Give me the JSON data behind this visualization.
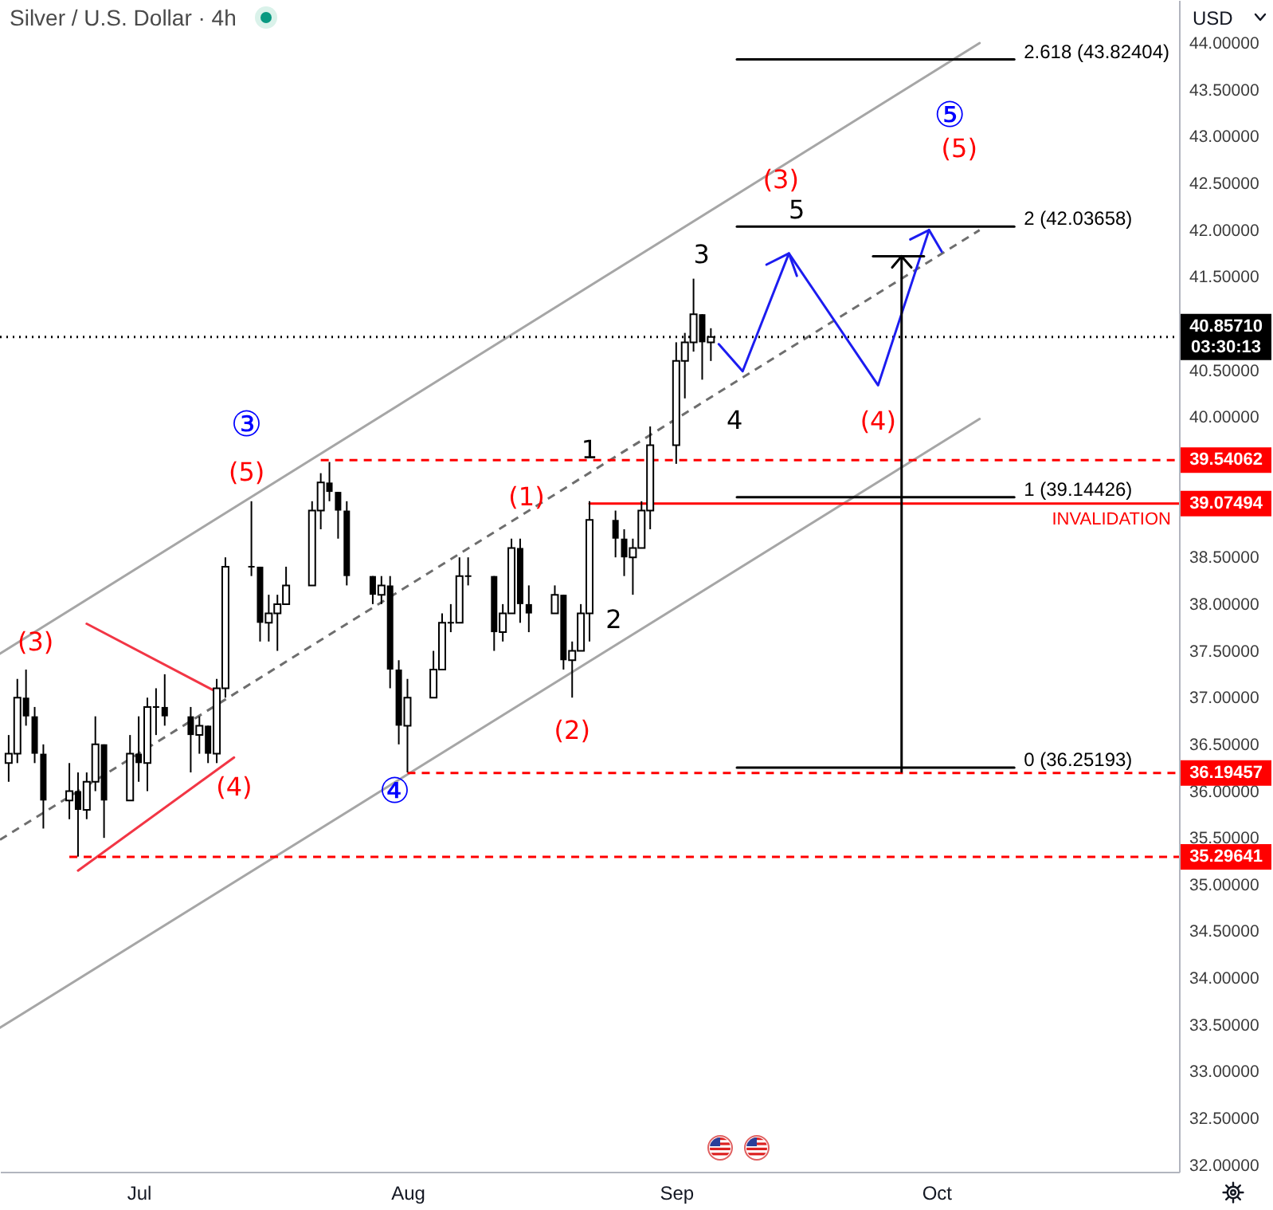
{
  "chart_data": {
    "type": "candlestick",
    "title": "Silver / U.S. Dollar · 4h",
    "ylabel": "USD",
    "x": [
      "--06-16",
      "--06-17",
      "--06-18",
      "--06-19",
      "--06-20",
      "--06-23",
      "--06-24",
      "--06-25",
      "--06-26",
      "--06-27",
      "--06-30",
      "--07-01",
      "--07-02",
      "--07-03",
      "--07-04",
      "--07-07",
      "--07-08",
      "--07-09",
      "--07-10",
      "--07-11",
      "--07-14",
      "--07-15",
      "--07-16",
      "--07-17",
      "--07-18",
      "--07-21",
      "--07-22",
      "--07-23",
      "--07-24",
      "--07-25",
      "--07-28",
      "--07-29",
      "--07-30",
      "--07-31",
      "--08-01",
      "--08-04",
      "--08-05",
      "--08-06",
      "--08-07",
      "--08-08",
      "--08-11",
      "--08-12",
      "--08-13",
      "--08-14",
      "--08-15",
      "--08-18",
      "--08-19",
      "--08-20",
      "--08-21",
      "--08-22",
      "--08-25",
      "--08-26",
      "--08-27",
      "--08-28",
      "--08-29",
      "--09-01",
      "--09-02",
      "--09-03",
      "--09-04",
      "--09-05"
    ],
    "ohlc": [
      [
        36.3,
        36.6,
        36.1,
        36.4
      ],
      [
        36.4,
        37.2,
        36.3,
        37.0
      ],
      [
        37.0,
        37.3,
        36.7,
        36.8
      ],
      [
        36.8,
        36.9,
        36.3,
        36.4
      ],
      [
        36.4,
        36.5,
        35.6,
        35.9
      ],
      [
        35.9,
        36.3,
        35.7,
        36.0
      ],
      [
        36.0,
        36.2,
        35.3,
        35.8
      ],
      [
        35.8,
        36.2,
        35.7,
        36.1
      ],
      [
        36.1,
        36.8,
        36.0,
        36.5
      ],
      [
        36.5,
        36.5,
        35.5,
        35.9
      ],
      [
        35.9,
        36.6,
        35.9,
        36.4
      ],
      [
        36.4,
        36.8,
        36.1,
        36.3
      ],
      [
        36.3,
        37.0,
        36.0,
        36.9
      ],
      [
        36.9,
        37.1,
        36.6,
        36.9
      ],
      [
        36.9,
        37.25,
        36.7,
        36.8
      ],
      [
        36.8,
        36.9,
        36.2,
        36.6
      ],
      [
        36.6,
        36.8,
        36.4,
        36.7
      ],
      [
        36.7,
        36.7,
        36.3,
        36.4
      ],
      [
        36.4,
        37.2,
        36.3,
        37.1
      ],
      [
        37.1,
        38.5,
        37.0,
        38.4
      ],
      [
        38.4,
        39.1,
        38.3,
        38.4
      ],
      [
        38.4,
        38.4,
        37.6,
        37.8
      ],
      [
        37.8,
        38.1,
        37.6,
        37.9
      ],
      [
        37.9,
        38.1,
        37.5,
        38.0
      ],
      [
        38.0,
        38.4,
        38.0,
        38.2
      ],
      [
        38.2,
        39.1,
        38.2,
        39.0
      ],
      [
        39.0,
        39.4,
        38.8,
        39.3
      ],
      [
        39.3,
        39.52,
        39.1,
        39.2
      ],
      [
        39.2,
        39.2,
        38.7,
        39.0
      ],
      [
        39.0,
        39.1,
        38.2,
        38.3
      ],
      [
        38.3,
        38.3,
        38.0,
        38.1
      ],
      [
        38.1,
        38.3,
        38.0,
        38.2
      ],
      [
        38.2,
        38.3,
        37.1,
        37.3
      ],
      [
        37.3,
        37.4,
        36.5,
        36.7
      ],
      [
        36.7,
        37.2,
        36.2,
        37.0
      ],
      [
        37.0,
        37.5,
        37.0,
        37.3
      ],
      [
        37.3,
        37.9,
        37.3,
        37.8
      ],
      [
        37.8,
        38.0,
        37.7,
        37.8
      ],
      [
        37.8,
        38.5,
        37.8,
        38.3
      ],
      [
        38.3,
        38.5,
        38.2,
        38.3
      ],
      [
        38.3,
        38.3,
        37.5,
        37.7
      ],
      [
        37.7,
        38.0,
        37.6,
        37.9
      ],
      [
        37.9,
        38.7,
        37.9,
        38.6
      ],
      [
        38.6,
        38.7,
        37.8,
        38.0
      ],
      [
        38.0,
        38.2,
        37.7,
        37.9
      ],
      [
        37.9,
        38.2,
        37.9,
        38.1
      ],
      [
        38.1,
        38.1,
        37.3,
        37.4
      ],
      [
        37.4,
        37.6,
        37.0,
        37.5
      ],
      [
        37.5,
        38.0,
        37.5,
        37.9
      ],
      [
        37.9,
        39.1,
        37.6,
        38.9
      ],
      [
        38.9,
        39.0,
        38.5,
        38.7
      ],
      [
        38.7,
        38.8,
        38.3,
        38.5
      ],
      [
        38.5,
        38.7,
        38.1,
        38.6
      ],
      [
        38.6,
        39.1,
        38.6,
        39.0
      ],
      [
        39.0,
        39.9,
        38.8,
        39.7
      ],
      [
        39.7,
        40.8,
        39.5,
        40.6
      ],
      [
        40.6,
        40.9,
        40.2,
        40.8
      ],
      [
        40.8,
        41.48,
        40.7,
        41.1
      ],
      [
        41.1,
        41.1,
        40.4,
        40.8
      ],
      [
        40.8,
        40.95,
        40.6,
        40.8571
      ]
    ],
    "series": [
      {
        "type": "line",
        "color": "#a6a6a6",
        "x": [
          "--06-15",
          "--10-06"
        ],
        "values": [
          37.47,
          44.0
        ]
      },
      {
        "type": "line",
        "color": "#6e6e6e",
        "line_style": "dashed",
        "x": [
          "--06-15",
          "--10-06"
        ],
        "values": [
          35.48,
          42.0
        ]
      },
      {
        "type": "line",
        "color": "#a6a6a6",
        "x": [
          "--06-15",
          "--10-06"
        ],
        "values": [
          33.47,
          39.98
        ]
      },
      {
        "type": "line",
        "color": "#f23645",
        "x": [
          "--06-25",
          "--07-10"
        ],
        "values": [
          37.79,
          37.06
        ]
      },
      {
        "type": "line",
        "color": "#f23645",
        "x": [
          "--06-24",
          "--07-12"
        ],
        "values": [
          35.15,
          36.36
        ]
      },
      {
        "type": "line",
        "color": "#ff0000",
        "line_style": "dashed",
        "x": [
          "--07-22",
          "--10-29"
        ],
        "values": [
          39.54062,
          39.54062
        ]
      },
      {
        "type": "line",
        "color": "#ff0000",
        "line_style": "dashed",
        "x": [
          "--08-01",
          "--10-29"
        ],
        "values": [
          36.19457,
          36.19457
        ]
      },
      {
        "type": "line",
        "color": "#ff0000",
        "line_style": "dashed",
        "x": [
          "--06-23",
          "--10-29"
        ],
        "values": [
          35.29641,
          35.29641
        ]
      },
      {
        "type": "line",
        "name": "INVALIDATION",
        "color": "#ff0000",
        "x": [
          "--08-22",
          "--10-29"
        ],
        "values": [
          39.07494,
          39.07494
        ]
      },
      {
        "type": "line",
        "color": "#000000",
        "line_style": "dotted",
        "x": [
          "--06-15",
          "--10-29"
        ],
        "values": [
          40.8571,
          40.8571
        ]
      },
      {
        "type": "line",
        "name": "2.618 (43.82404)",
        "color": "#000000",
        "x": [
          "--09-08",
          "--10-10"
        ],
        "values": [
          43.82404,
          43.82404
        ]
      },
      {
        "type": "line",
        "name": "2 (42.03658)",
        "color": "#000000",
        "x": [
          "--09-08",
          "--10-10"
        ],
        "values": [
          42.03658,
          42.03658
        ]
      },
      {
        "type": "line",
        "name": "1 (39.14426)",
        "color": "#000000",
        "x": [
          "--09-08",
          "--10-10"
        ],
        "values": [
          39.14426,
          39.14426
        ]
      },
      {
        "type": "line",
        "name": "0 (36.25193)",
        "color": "#000000",
        "x": [
          "--09-08",
          "--10-10"
        ],
        "values": [
          36.25193,
          36.25193
        ]
      },
      {
        "type": "line",
        "color": "#1c1cf0",
        "x": [
          "--09-05T22:00",
          "--09-08T16:00",
          "--09-14T00:00",
          "--09-24T07:00",
          "--09-30T04:00"
        ],
        "values": [
          40.78,
          40.49,
          41.75,
          40.34,
          42.0
        ]
      },
      {
        "type": "line",
        "color": "#1c1cf0",
        "x": [
          "--09-11T10:00",
          "--09-14T00:00",
          "--09-14T22:00"
        ],
        "values": [
          41.63,
          41.75,
          41.51
        ]
      },
      {
        "type": "line",
        "color": "#1c1cf0",
        "x": [
          "--09-28T00:00",
          "--09-30T04:00",
          "--10-01T15:00"
        ],
        "values": [
          41.9,
          42.0,
          41.77
        ]
      },
      {
        "type": "line",
        "color": "#000000",
        "x": [
          "--09-27",
          "--09-27"
        ],
        "values": [
          36.21,
          41.72
        ]
      },
      {
        "type": "line",
        "color": "#000000",
        "x": [
          "--09-23T17:00",
          "--09-29T14:00"
        ],
        "values": [
          41.72,
          41.72
        ]
      },
      {
        "type": "line",
        "color": "#000000",
        "x": [
          "--09-25T22:00",
          "--09-27",
          "--09-28T03:00"
        ],
        "values": [
          41.6,
          41.72,
          41.6
        ]
      }
    ],
    "annotations": [
      {
        "text": "(3)",
        "x": "--06-18",
        "y": 37.3
      },
      {
        "text": "(4)",
        "x": "--07-12",
        "y": 36.36
      },
      {
        "text": "(5)",
        "x": "--07-14",
        "y": 39.1
      },
      {
        "text": "③",
        "x": "--07-14",
        "y": 39.1
      },
      {
        "text": "④",
        "x": "--08-01",
        "y": 36.2
      },
      {
        "text": "(1)",
        "x": "--08-14",
        "y": 38.7
      },
      {
        "text": "(2)",
        "x": "--08-20",
        "y": 37.0
      },
      {
        "text": "1",
        "x": "--08-22",
        "y": 39.1
      },
      {
        "text": "2",
        "x": "--08-27",
        "y": 38.1
      },
      {
        "text": "3",
        "x": "--09-03",
        "y": 41.48
      },
      {
        "text": "4",
        "x": "--09-08T16:00",
        "y": 40.49
      },
      {
        "text": "(3)",
        "x": "--09-14T00:00",
        "y": 41.75
      },
      {
        "text": "5",
        "x": "--09-14T00:00",
        "y": 41.75
      },
      {
        "text": "(4)",
        "x": "--09-24T07:00",
        "y": 40.34
      },
      {
        "text": "⑤",
        "x": "--09-30T04:00",
        "y": 42.0
      },
      {
        "text": "(5)",
        "x": "--09-30T04:00",
        "y": 42.0
      },
      {
        "text": "40.85710\n03:30:13",
        "x": "--10-29",
        "y": 40.8571
      },
      {
        "text": "39.54062",
        "x": "--10-29",
        "y": 39.54062
      },
      {
        "text": "39.07494",
        "x": "--10-29",
        "y": 39.07494
      },
      {
        "text": "36.19457",
        "x": "--10-29",
        "y": 36.19457
      },
      {
        "text": "35.29641",
        "x": "--10-29",
        "y": 35.29641
      }
    ],
    "xlim": [
      "--06-15",
      "--10-29"
    ],
    "xticks": [
      {
        "value": "--07-01",
        "label": "Jul"
      },
      {
        "value": "--08-01",
        "label": "Aug"
      },
      {
        "value": "--09-01",
        "label": "Sep"
      },
      {
        "value": "--10-01",
        "label": "Oct"
      }
    ],
    "ylim": [
      31.93,
      44.46
    ],
    "yticks": [
      {
        "value": 32,
        "label": "32.00000"
      },
      {
        "value": 32.5,
        "label": "32.50000"
      },
      {
        "value": 33,
        "label": "33.00000"
      },
      {
        "value": 33.5,
        "label": "33.50000"
      },
      {
        "value": 34,
        "label": "34.00000"
      },
      {
        "value": 34.5,
        "label": "34.50000"
      },
      {
        "value": 35,
        "label": "35.00000"
      },
      {
        "value": 35.5,
        "label": "35.50000"
      },
      {
        "value": 36,
        "label": "36.00000"
      },
      {
        "value": 36.5,
        "label": "36.50000"
      },
      {
        "value": 37,
        "label": "37.00000"
      },
      {
        "value": 37.5,
        "label": "37.50000"
      },
      {
        "value": 38,
        "label": "38.00000"
      },
      {
        "value": 38.5,
        "label": "38.50000"
      },
      {
        "value": 40,
        "label": "40.00000"
      },
      {
        "value": 40.5,
        "label": "40.50000"
      },
      {
        "value": 41.5,
        "label": "41.50000"
      },
      {
        "value": 42,
        "label": "42.00000"
      },
      {
        "value": 42.5,
        "label": "42.50000"
      },
      {
        "value": 43,
        "label": "43.00000"
      },
      {
        "value": 43.5,
        "label": "43.50000"
      },
      {
        "value": 44,
        "label": "44.00000"
      }
    ]
  }
}
